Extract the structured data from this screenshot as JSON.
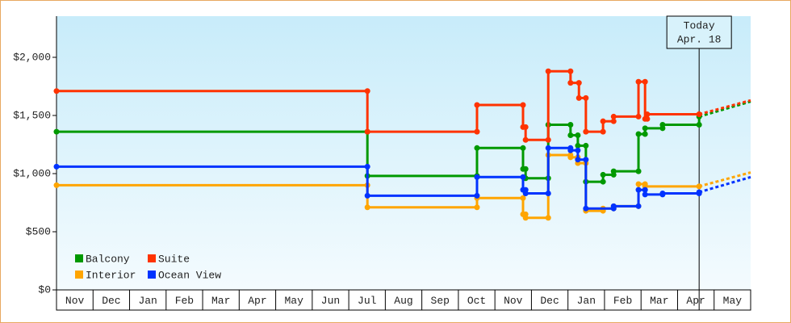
{
  "chart_data": {
    "type": "step-line",
    "xlim": [
      0,
      19
    ],
    "xticks": [
      {
        "value": 0.5,
        "label": "Nov"
      },
      {
        "value": 1.5,
        "label": "Dec"
      },
      {
        "value": 2.5,
        "label": "Jan"
      },
      {
        "value": 3.5,
        "label": "Feb"
      },
      {
        "value": 4.5,
        "label": "Mar"
      },
      {
        "value": 5.5,
        "label": "Apr"
      },
      {
        "value": 6.5,
        "label": "May"
      },
      {
        "value": 7.5,
        "label": "Jun"
      },
      {
        "value": 8.5,
        "label": "Jul"
      },
      {
        "value": 9.5,
        "label": "Aug"
      },
      {
        "value": 10.5,
        "label": "Sep"
      },
      {
        "value": 11.5,
        "label": "Oct"
      },
      {
        "value": 12.5,
        "label": "Nov"
      },
      {
        "value": 13.5,
        "label": "Dec"
      },
      {
        "value": 14.5,
        "label": "Jan"
      },
      {
        "value": 15.5,
        "label": "Feb"
      },
      {
        "value": 16.5,
        "label": "Mar"
      },
      {
        "value": 17.5,
        "label": "Apr"
      },
      {
        "value": 18.5,
        "label": "May"
      }
    ],
    "ylim": [
      0,
      2354
    ],
    "yticks": [
      {
        "value": 0,
        "label": "$0"
      },
      {
        "value": 500,
        "label": "$500"
      },
      {
        "value": 1000,
        "label": "$1,000"
      },
      {
        "value": 1500,
        "label": "$1,500"
      },
      {
        "value": 2000,
        "label": "$2,000"
      }
    ],
    "today": {
      "x": 17.59,
      "label": "Today",
      "date": "Apr. 18"
    },
    "series": [
      {
        "name": "Balcony",
        "color": "#009900",
        "x": [
          0,
          8.51,
          11.51,
          12.77,
          12.84,
          13.46,
          14.07,
          14.27,
          14.49,
          14.96,
          15.25,
          15.93,
          16.11,
          16.59,
          17.59
        ],
        "values": [
          1360,
          980,
          1220,
          1040,
          960,
          1420,
          1330,
          1240,
          930,
          990,
          1020,
          1340,
          1390,
          1420,
          1490
        ],
        "forecast": 1620
      },
      {
        "name": "Suite",
        "color": "#ff3300",
        "x": [
          0,
          8.51,
          11.51,
          12.77,
          12.84,
          13.46,
          14.07,
          14.3,
          14.49,
          14.96,
          15.25,
          15.93,
          16.11,
          16.17,
          17.59
        ],
        "values": [
          1710,
          1360,
          1590,
          1400,
          1290,
          1880,
          1780,
          1650,
          1360,
          1450,
          1490,
          1790,
          1470,
          1510,
          1510
        ],
        "forecast": 1630
      },
      {
        "name": "Interior",
        "color": "#ffa500",
        "x": [
          0,
          8.51,
          11.51,
          12.77,
          12.84,
          13.46,
          14.07,
          14.27,
          14.49,
          14.96,
          15.25,
          15.93,
          16.11,
          17.59
        ],
        "values": [
          900,
          710,
          790,
          650,
          620,
          1160,
          1140,
          1090,
          680,
          700,
          720,
          910,
          890,
          890
        ],
        "forecast": 1010
      },
      {
        "name": "Ocean View",
        "color": "#0033ff",
        "x": [
          0,
          8.51,
          11.51,
          12.77,
          12.84,
          13.46,
          14.07,
          14.27,
          14.49,
          15.25,
          15.93,
          16.11,
          16.59,
          17.59
        ],
        "values": [
          1060,
          810,
          970,
          860,
          830,
          1220,
          1200,
          1120,
          700,
          720,
          860,
          820,
          830,
          840
        ],
        "forecast": 970
      }
    ]
  }
}
